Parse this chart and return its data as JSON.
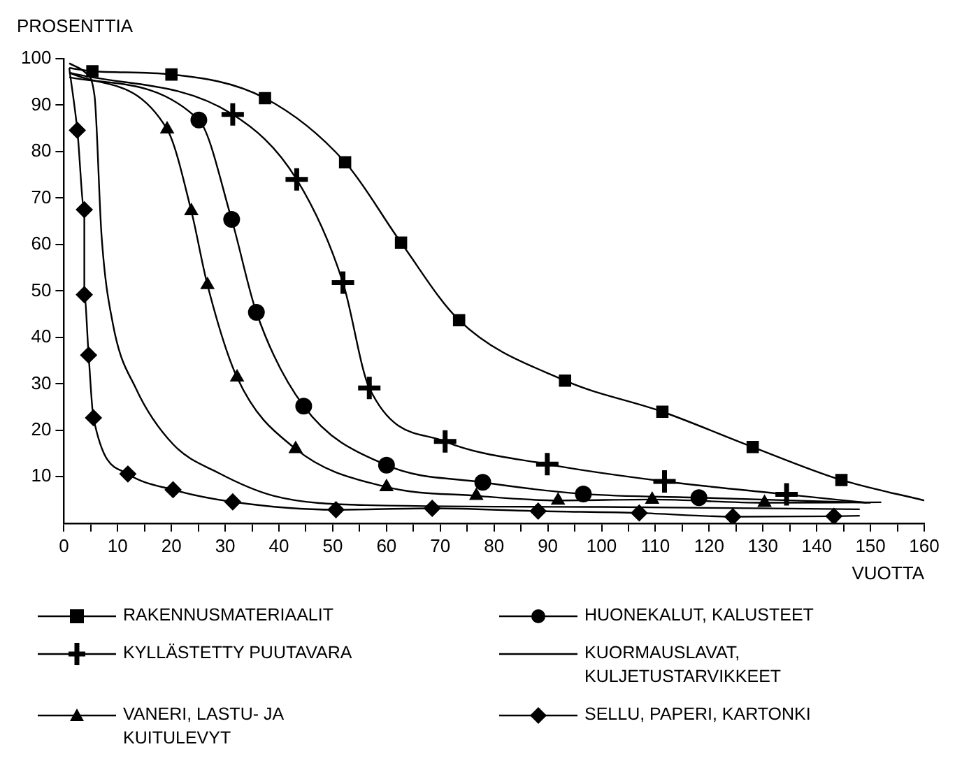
{
  "chart_data": {
    "type": "line",
    "xlabel": "VUOTTA",
    "ylabel": "PROSENTTIA",
    "xlim": [
      0,
      160
    ],
    "ylim": [
      0,
      100
    ],
    "xticks": [
      0,
      {
        "value": 5,
        "label": null
      },
      10,
      {
        "value": 15,
        "label": null
      },
      20,
      {
        "value": 25,
        "label": null
      },
      30,
      {
        "value": 35,
        "label": null
      },
      40,
      {
        "value": 45,
        "label": null
      },
      50,
      {
        "value": 55,
        "label": null
      },
      60,
      {
        "value": 65,
        "label": null
      },
      70,
      {
        "value": 75,
        "label": null
      },
      80,
      {
        "value": 85,
        "label": null
      },
      90,
      {
        "value": 95,
        "label": null
      },
      100,
      {
        "value": 105,
        "label": null
      },
      110,
      {
        "value": 115,
        "label": null
      },
      120,
      {
        "value": 125,
        "label": null
      },
      130,
      {
        "value": 135,
        "label": null
      },
      140,
      {
        "value": 145,
        "label": null
      },
      150,
      {
        "value": 155,
        "label": null
      },
      160
    ],
    "yticks": [
      10,
      20,
      30,
      40,
      50,
      60,
      70,
      80,
      90,
      100
    ],
    "grid": false,
    "legend": "bottom",
    "series": [
      {
        "name": "RAKENNUSMATERIAALIT",
        "color": "#000000",
        "marker": "square",
        "x": [
          1,
          5.3,
          20,
          37.4,
          52.3,
          62.7,
          73.5,
          93.2,
          111.3,
          128.1,
          144.6,
          160
        ],
        "values": [
          98,
          97.3,
          96.6,
          91.5,
          77.7,
          60.4,
          43.7,
          30.7,
          24,
          16.4,
          9.3,
          4.9
        ]
      },
      {
        "name": "HUONEKALUT, KALUSTEET",
        "color": "#000000",
        "marker": "circle",
        "x": [
          1,
          25.1,
          31.2,
          35.8,
          44.6,
          60,
          77.9,
          96.6,
          118.1,
          150
        ],
        "values": [
          96,
          86.8,
          65.4,
          45.4,
          25.2,
          12.5,
          8.8,
          6.3,
          5.5,
          4.4
        ]
      },
      {
        "name": "KYLLÄSTETTY PUUTAVARA",
        "color": "#000000",
        "marker": "cross",
        "x": [
          1,
          31.4,
          43.3,
          51.9,
          56.8,
          70.9,
          89.9,
          111.7,
          134.4,
          149.3
        ],
        "values": [
          97,
          88,
          74,
          51.8,
          29.1,
          17.6,
          12.7,
          9,
          6.2,
          4.4
        ]
      },
      {
        "name": "KUORMAUSLAVAT, KULJETUSTARVIKKEET",
        "color": "#000000",
        "marker": "none",
        "x": [
          1,
          4,
          5.7,
          7,
          9.1,
          13.4,
          20.3,
          28.8,
          39,
          56,
          100,
          148
        ],
        "values": [
          99,
          97,
          92,
          62,
          43,
          29,
          17,
          10.8,
          5.9,
          3.9,
          3.5,
          3
        ]
      },
      {
        "name": "VANERI, LASTU- JA KUITULEVYT",
        "color": "#000000",
        "marker": "triangle",
        "x": [
          1,
          19.2,
          23.7,
          26.7,
          32.2,
          43.1,
          60,
          76.7,
          91.9,
          109.4,
          130.3,
          152
        ],
        "values": [
          97,
          84.8,
          67.2,
          51.3,
          31.4,
          16,
          7.8,
          5.9,
          4.9,
          5.1,
          4.4,
          4.5
        ]
      },
      {
        "name": "SELLU, PAPERI, KARTONKI",
        "color": "#000000",
        "marker": "diamond",
        "x": [
          1,
          2.5,
          3.8,
          3.8,
          4.6,
          5.5,
          11.9,
          20.3,
          31.4,
          50.6,
          68.5,
          88.2,
          107,
          124.4,
          143.2,
          148
        ],
        "values": [
          98,
          84.6,
          67.5,
          49.2,
          36.2,
          22.7,
          10.6,
          7.2,
          4.6,
          2.9,
          3.2,
          2.6,
          2.2,
          1.4,
          1.5,
          1.6
        ]
      }
    ]
  }
}
